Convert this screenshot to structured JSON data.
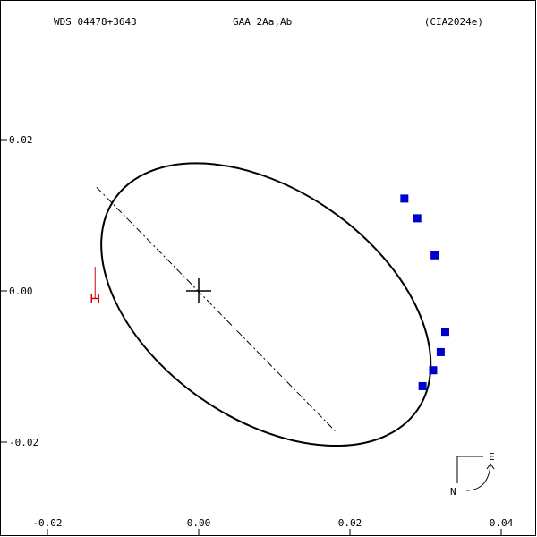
{
  "header": {
    "left": "WDS 04478+3643",
    "center": "GAA   2Aa,Ab",
    "right": "(CIA2024e)"
  },
  "chart_data": {
    "type": "scatter",
    "xlim": [
      -0.02,
      0.04
    ],
    "ylim": [
      -0.02,
      0.02
    ],
    "x_ticks": [
      {
        "value": -0.02,
        "label": "-0.02"
      },
      {
        "value": 0.0,
        "label": "0.00"
      },
      {
        "value": 0.02,
        "label": "0.02"
      },
      {
        "value": 0.04,
        "label": "0.04"
      }
    ],
    "y_ticks": [
      {
        "value": 0.02,
        "label": "0.02"
      },
      {
        "value": 0.0,
        "label": "0.00"
      },
      {
        "value": -0.02,
        "label": "-0.02"
      }
    ],
    "orbit_ellipse": {
      "center": [
        0.0089,
        -0.0018
      ],
      "semi_axes": [
        0.0244,
        0.0151
      ],
      "rotation_deg": 35,
      "color": "#000000"
    },
    "line_of_nodes": {
      "from": [
        -0.0135,
        0.0137
      ],
      "to": [
        0.0183,
        -0.0188
      ],
      "style": "dash-dot"
    },
    "primary_star": [
      0.0,
      0.0
    ],
    "observations": {
      "color": "#0000cc",
      "points": [
        [
          0.0272,
          0.0122
        ],
        [
          0.0289,
          0.0096
        ],
        [
          0.0312,
          0.0047
        ],
        [
          0.0326,
          -0.0054
        ],
        [
          0.032,
          -0.0081
        ],
        [
          0.031,
          -0.0105
        ],
        [
          0.0296,
          -0.0126
        ]
      ]
    },
    "red_marker": {
      "color": "#dd0000",
      "from": [
        -0.0137,
        0.0032
      ],
      "to": [
        -0.0137,
        -0.001
      ]
    },
    "orientation": {
      "east_label": "E",
      "north_label": "N"
    }
  }
}
